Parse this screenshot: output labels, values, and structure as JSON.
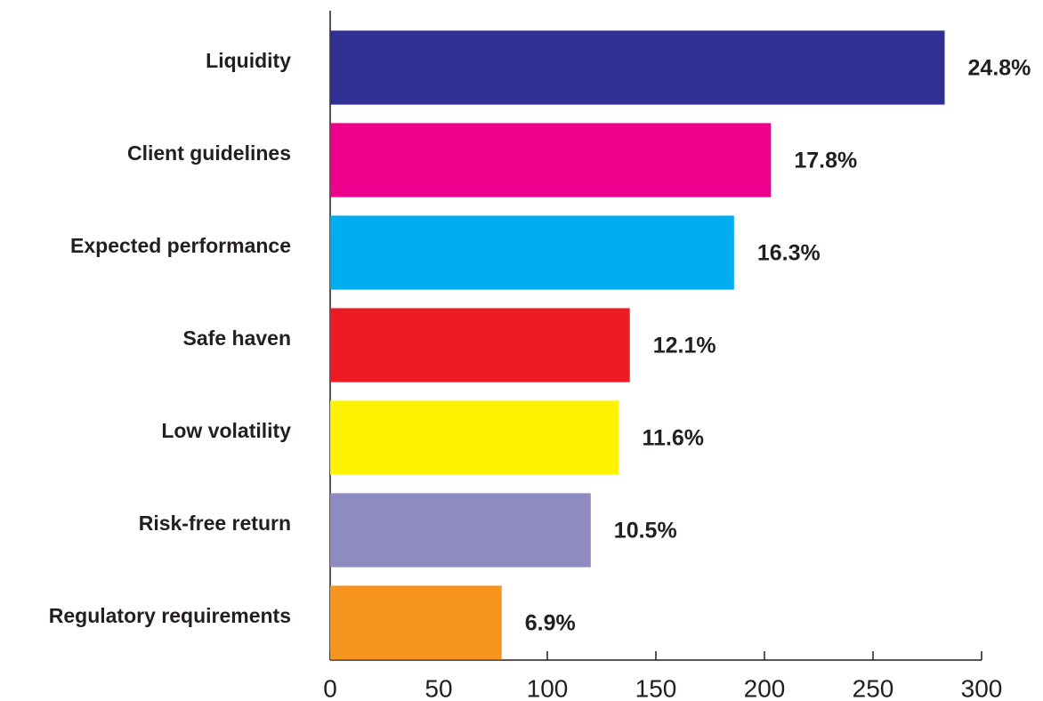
{
  "chart_data": {
    "type": "hbar",
    "categories": [
      "Liquidity",
      "Client guidelines",
      "Expected performance",
      "Safe haven",
      "Low volatility",
      "Risk-free return",
      "Regulatory requirements"
    ],
    "values": [
      283,
      203,
      186,
      138,
      133,
      120,
      79
    ],
    "bar_labels": [
      "24.8%",
      "17.8%",
      "16.3%",
      "12.1%",
      "11.6%",
      "10.5%",
      "6.9%"
    ],
    "colors": [
      "#2e3192",
      "#ec008c",
      "#00aeef",
      "#ed1c24",
      "#fff200",
      "#8e8ac2",
      "#f7941d"
    ],
    "xlim": [
      0,
      300
    ],
    "xticks": [
      0,
      50,
      100,
      150,
      200,
      250,
      300
    ],
    "grid": false
  }
}
